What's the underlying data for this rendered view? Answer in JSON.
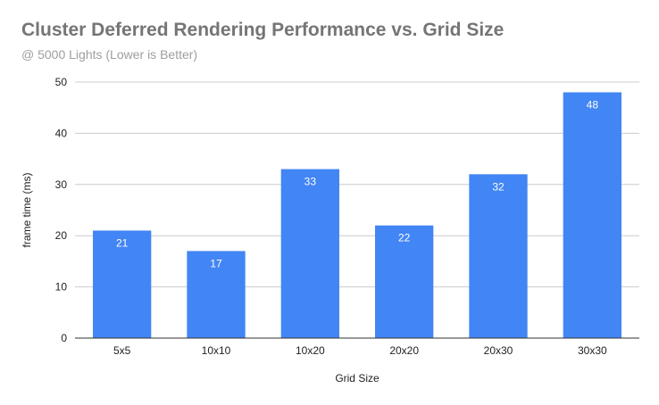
{
  "chart_data": {
    "type": "bar",
    "title": "Cluster Deferred Rendering Performance vs. Grid Size",
    "subtitle": "@ 5000 Lights (Lower is Better)",
    "xlabel": "Grid Size",
    "ylabel": "frame time (ms)",
    "categories": [
      "5x5",
      "10x10",
      "10x20",
      "20x20",
      "20x30",
      "30x30"
    ],
    "values": [
      21,
      17,
      33,
      22,
      32,
      48
    ],
    "data_labels": [
      "21",
      "17",
      "33",
      "22",
      "32",
      "48"
    ],
    "ylim": [
      0,
      50
    ],
    "yticks": [
      0,
      10,
      20,
      30,
      40,
      50
    ],
    "grid": true,
    "legend": "none",
    "bar_color": "#4285f4"
  }
}
